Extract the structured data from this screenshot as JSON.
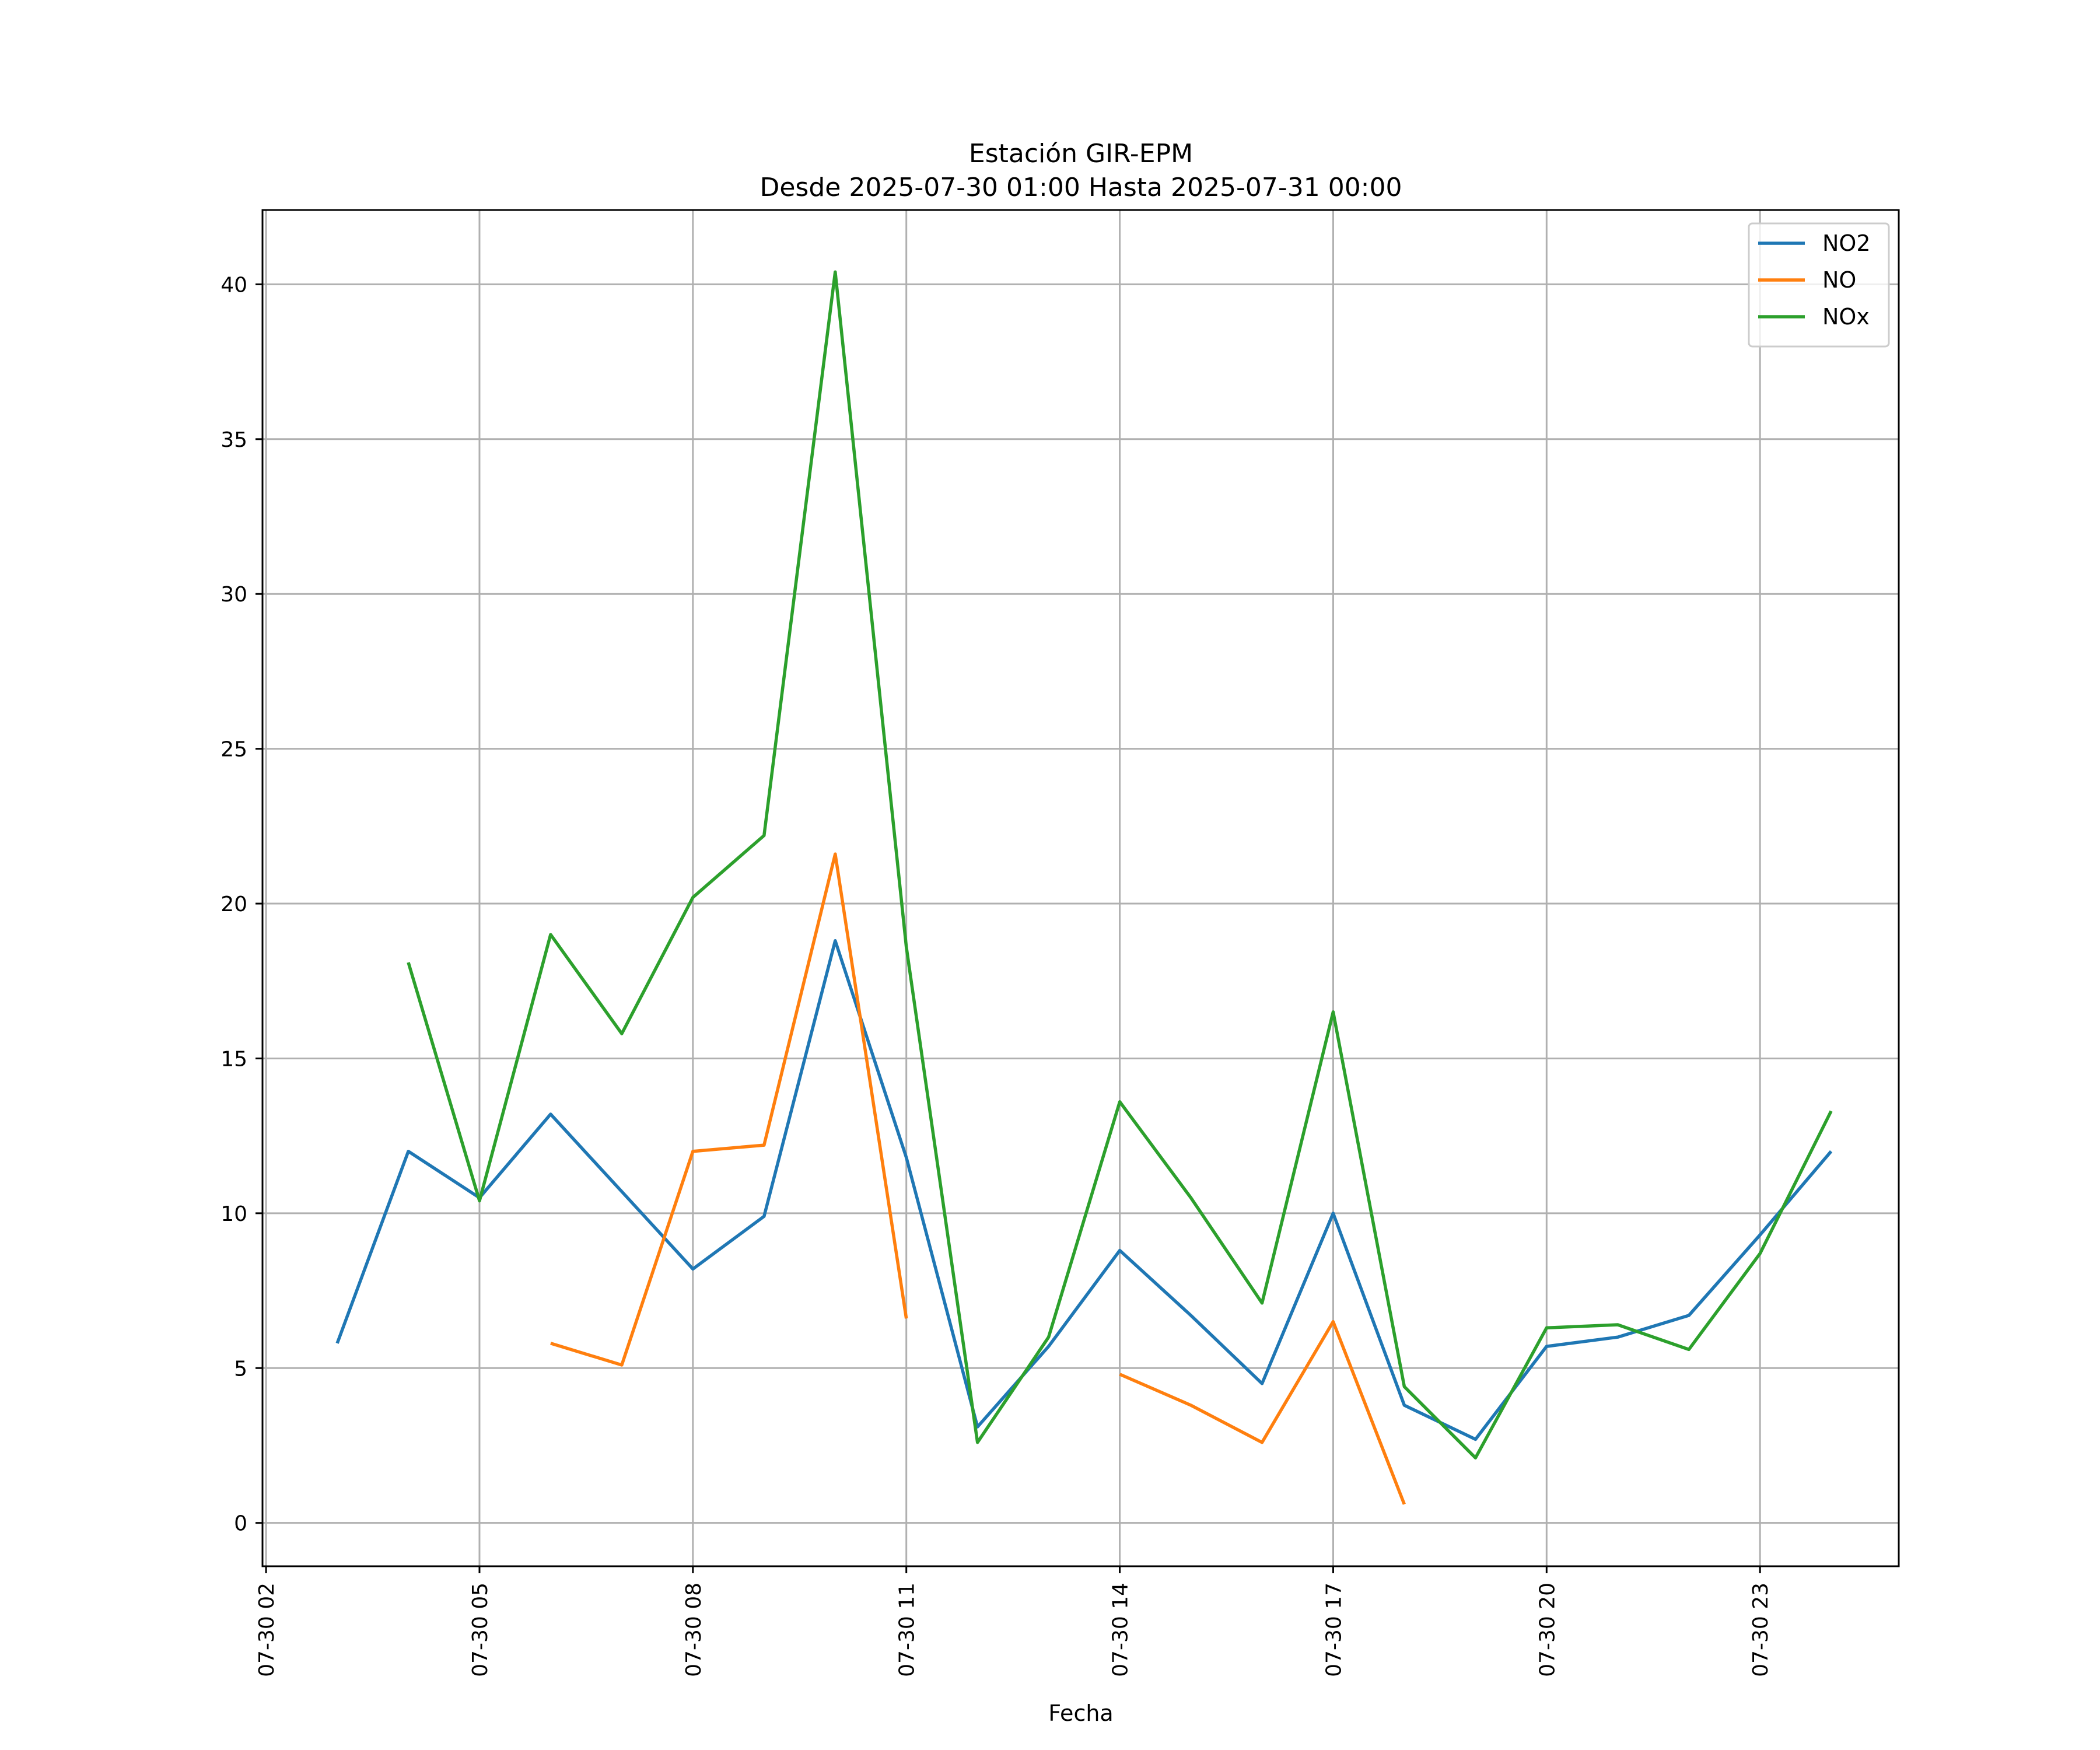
{
  "chart_data": {
    "type": "line",
    "title": "Estación GIR-EPM",
    "subtitle": "Desde 2025-07-30 01:00 Hasta 2025-07-31 00:00",
    "xlabel": "Fecha",
    "ylabel": "",
    "x": [
      "07-30 03",
      "07-30 04",
      "07-30 05",
      "07-30 06",
      "07-30 07",
      "07-30 08",
      "07-30 09",
      "07-30 10",
      "07-30 11",
      "07-30 12",
      "07-30 13",
      "07-30 14",
      "07-30 15",
      "07-30 16",
      "07-30 17",
      "07-30 18",
      "07-30 19",
      "07-30 20",
      "07-30 21",
      "07-30 22",
      "07-30 23",
      "07-31 00"
    ],
    "x_ticks": [
      "07-30 02",
      "07-30 05",
      "07-30 08",
      "07-30 11",
      "07-30 14",
      "07-30 17",
      "07-30 20",
      "07-30 23"
    ],
    "y_ticks": [
      0,
      5,
      10,
      15,
      20,
      25,
      30,
      35,
      40
    ],
    "ylim": [
      -1.4,
      42.4
    ],
    "xlim_hours": [
      1.95,
      24.95
    ],
    "grid": true,
    "legend_position": "top-right",
    "series": [
      {
        "name": "NO2",
        "color": "#1f77b4",
        "values": [
          5.8,
          12.0,
          10.5,
          13.2,
          10.7,
          8.2,
          9.9,
          18.8,
          11.8,
          3.1,
          5.7,
          8.8,
          6.7,
          4.5,
          10.0,
          3.8,
          2.7,
          5.7,
          6.0,
          6.7,
          9.3,
          12.0
        ]
      },
      {
        "name": "NO",
        "color": "#ff7f0e",
        "values": [
          null,
          null,
          null,
          5.8,
          5.1,
          12.0,
          12.2,
          21.6,
          6.6,
          null,
          null,
          4.8,
          3.8,
          2.6,
          6.5,
          0.6,
          null,
          null,
          null,
          null,
          null,
          null
        ]
      },
      {
        "name": "NOx",
        "color": "#2ca02c",
        "values": [
          null,
          18.1,
          10.4,
          19.0,
          15.8,
          20.2,
          22.2,
          40.4,
          18.6,
          2.6,
          6.0,
          13.6,
          10.5,
          7.1,
          16.5,
          4.4,
          2.1,
          6.3,
          6.4,
          5.6,
          8.7,
          13.3
        ]
      }
    ]
  }
}
